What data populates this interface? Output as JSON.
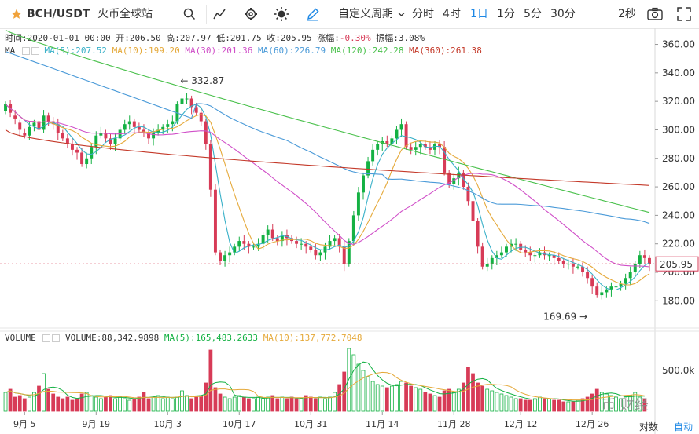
{
  "toolbar": {
    "symbol": "BCH/USDT",
    "exchange": "火币全球站",
    "custom_period": "自定义周期",
    "periods": [
      "分时",
      "4时",
      "1日",
      "1分",
      "5分",
      "30分"
    ],
    "active_period": "1日",
    "refresh": "2秒",
    "icons": [
      "star-icon",
      "search-icon",
      "indicator-icon",
      "settings-icon",
      "theme-icon",
      "draw-icon",
      "chevron-down-icon",
      "camera-icon",
      "fullscreen-icon"
    ]
  },
  "info_line": {
    "time_label": "时间:",
    "time": "2020-01-01 00:00",
    "open_label": "开:",
    "open": "206.50",
    "high_label": "高:",
    "high": "207.97",
    "low_label": "低:",
    "low": "201.75",
    "close_label": "收:",
    "close": "205.95",
    "change_label": "涨幅:",
    "change": "-0.30%",
    "amplitude_label": "振幅:",
    "amplitude": "3.08%"
  },
  "ma_line": {
    "label": "MA",
    "ma5": "MA(5):207.52",
    "ma10": "MA(10):199.20",
    "ma30": "MA(30):201.36",
    "ma60": "MA(60):226.79",
    "ma120": "MA(120):242.28",
    "ma360": "MA(360):261.38"
  },
  "volume_line": {
    "label": "VOLUME",
    "value": "VOLUME:88,342.9898",
    "ma5": "MA(5):165,483.2633",
    "ma10": "MA(10):137,772.7048"
  },
  "colors": {
    "up": "#14b143",
    "down": "#d73b57",
    "ma5": "#38b0c8",
    "ma10": "#e5a93a",
    "ma30": "#d04fc8",
    "ma60": "#4a9ad8",
    "ma120": "#48c04a",
    "ma360": "#c43a2a",
    "active": "#1e88e5"
  },
  "annotations": {
    "high_marker": "332.87",
    "low_marker": "169.69"
  },
  "last_price_tag": "205.95",
  "axis_mode": {
    "log": "对数",
    "auto": "自动"
  },
  "watermark": "币 财经",
  "chart_data": {
    "type": "candlestick",
    "price_axis": {
      "ticks": [
        180,
        200,
        220,
        240,
        260,
        280,
        300,
        320,
        340,
        360
      ],
      "range": [
        162,
        368
      ]
    },
    "volume_axis": {
      "ticks": [
        "500.0k"
      ]
    },
    "x_ticks": [
      "9月 5",
      "9月 19",
      "10月 3",
      "10月 17",
      "10月 31",
      "11月 14",
      "11月 28",
      "12月 12",
      "12月 26"
    ],
    "closes": [
      318,
      312,
      308,
      300,
      296,
      302,
      305,
      300,
      310,
      306,
      304,
      298,
      294,
      290,
      286,
      284,
      276,
      280,
      288,
      296,
      298,
      294,
      290,
      294,
      300,
      304,
      306,
      302,
      300,
      298,
      294,
      298,
      300,
      302,
      304,
      306,
      318,
      322,
      322,
      316,
      312,
      306,
      290,
      258,
      214,
      208,
      212,
      214,
      218,
      222,
      220,
      218,
      218,
      220,
      226,
      230,
      224,
      222,
      226,
      224,
      222,
      220,
      220,
      218,
      216,
      212,
      214,
      218,
      222,
      224,
      218,
      206,
      222,
      240,
      256,
      268,
      278,
      286,
      290,
      292,
      290,
      294,
      300,
      304,
      288,
      286,
      288,
      290,
      288,
      286,
      290,
      288,
      270,
      262,
      266,
      270,
      260,
      250,
      236,
      218,
      204,
      206,
      210,
      212,
      214,
      218,
      220,
      220,
      216,
      214,
      212,
      212,
      214,
      212,
      212,
      210,
      208,
      206,
      206,
      204,
      204,
      200,
      196,
      190,
      184,
      186,
      188,
      190,
      190,
      192,
      196,
      200,
      206,
      212,
      210,
      206
    ],
    "opens": [
      313,
      318,
      310,
      305,
      298,
      296,
      303,
      306,
      300,
      310,
      306,
      304,
      298,
      294,
      290,
      286,
      284,
      276,
      280,
      288,
      296,
      298,
      294,
      290,
      294,
      300,
      304,
      306,
      302,
      300,
      298,
      294,
      298,
      300,
      302,
      304,
      306,
      318,
      322,
      322,
      316,
      312,
      306,
      290,
      258,
      214,
      208,
      212,
      214,
      218,
      222,
      220,
      218,
      218,
      220,
      226,
      230,
      224,
      222,
      226,
      224,
      222,
      220,
      220,
      218,
      216,
      212,
      214,
      218,
      222,
      224,
      218,
      206,
      222,
      240,
      256,
      268,
      278,
      286,
      290,
      292,
      290,
      294,
      300,
      304,
      288,
      286,
      288,
      290,
      288,
      286,
      290,
      288,
      270,
      262,
      266,
      270,
      260,
      250,
      236,
      218,
      204,
      206,
      210,
      212,
      214,
      218,
      220,
      220,
      216,
      214,
      212,
      212,
      214,
      212,
      212,
      210,
      208,
      206,
      206,
      204,
      204,
      200,
      196,
      190,
      184,
      186,
      188,
      190,
      190,
      192,
      196,
      200,
      206,
      212,
      210
    ],
    "volumes": [
      60,
      70,
      45,
      50,
      40,
      45,
      60,
      80,
      120,
      70,
      55,
      45,
      40,
      45,
      35,
      40,
      55,
      60,
      50,
      45,
      40,
      45,
      50,
      40,
      45,
      40,
      35,
      40,
      45,
      60,
      40,
      45,
      50,
      40,
      45,
      40,
      45,
      65,
      50,
      40,
      45,
      50,
      90,
      195,
      75,
      55,
      45,
      40,
      45,
      50,
      45,
      40,
      40,
      45,
      40,
      45,
      50,
      40,
      45,
      40,
      45,
      40,
      40,
      50,
      45,
      40,
      45,
      40,
      45,
      60,
      85,
      125,
      200,
      180,
      150,
      130,
      110,
      95,
      85,
      80,
      75,
      80,
      85,
      95,
      90,
      80,
      75,
      70,
      60,
      55,
      50,
      45,
      65,
      70,
      60,
      70,
      90,
      140,
      120,
      90,
      80,
      70,
      65,
      60,
      55,
      50,
      45,
      40,
      40,
      35,
      35,
      40,
      45,
      40,
      40,
      35,
      35,
      30,
      30,
      30,
      35,
      40,
      45,
      55,
      70,
      60,
      55,
      50,
      45,
      40,
      45,
      50,
      60,
      45,
      40
    ],
    "ma_values": {
      "MA(5)": "207.52",
      "MA(10)": "199.20",
      "MA(30)": "201.36",
      "MA(60)": "226.79",
      "MA(120)": "242.28",
      "MA(360)": "261.38"
    }
  }
}
